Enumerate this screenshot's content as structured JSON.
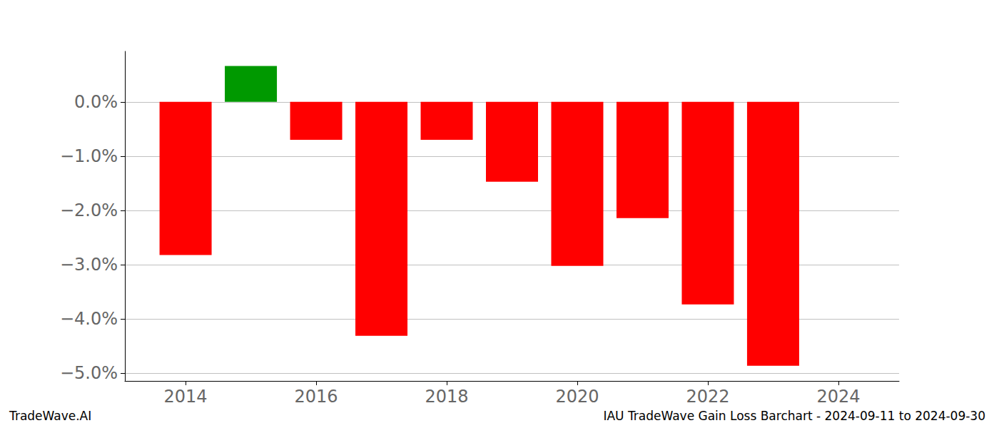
{
  "chart_data": {
    "type": "bar",
    "title": "IAU TradeWave Gain Loss Barchart - 2024-09-11 to 2024-09-30",
    "annotations": [
      "TradeWave.AI"
    ],
    "x": [
      2014,
      2015,
      2016,
      2017,
      2018,
      2019,
      2020,
      2021,
      2022,
      2023
    ],
    "values": [
      -2.82,
      0.66,
      -0.7,
      -4.31,
      -0.7,
      -1.47,
      -3.02,
      -2.14,
      -3.73,
      -4.86
    ],
    "colors": [
      "#ff0000",
      "#009900",
      "#ff0000",
      "#ff0000",
      "#ff0000",
      "#ff0000",
      "#ff0000",
      "#ff0000",
      "#ff0000",
      "#ff0000"
    ],
    "xlim": [
      2013.07,
      2024.93
    ],
    "xticks": [
      2014,
      2016,
      2018,
      2020,
      2022,
      2024
    ],
    "ylim": [
      -5.14,
      0.93
    ],
    "yticks": [
      {
        "value": 0,
        "label": "0.0%"
      },
      {
        "value": -1,
        "label": "−1.0%"
      },
      {
        "value": -2,
        "label": "−2.0%"
      },
      {
        "value": -3,
        "label": "−3.0%"
      },
      {
        "value": -4,
        "label": "−4.0%"
      },
      {
        "value": -5,
        "label": "−5.0%"
      }
    ],
    "grid": true
  }
}
